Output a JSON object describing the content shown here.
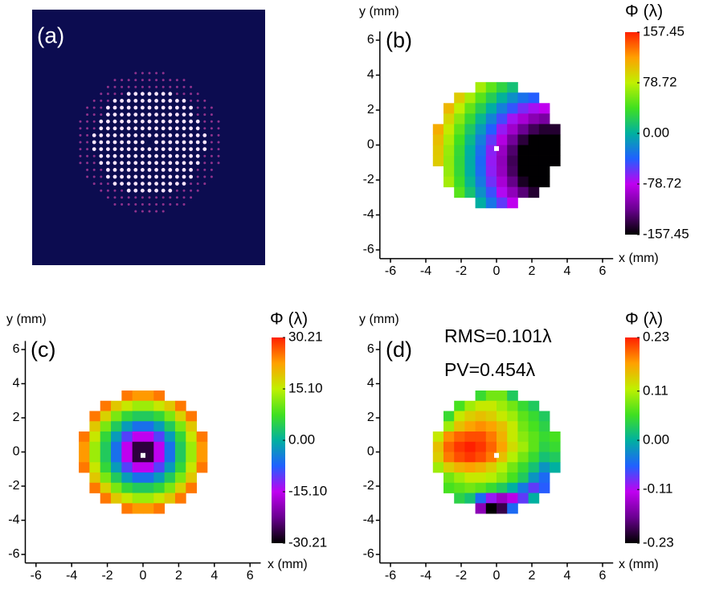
{
  "chart_data": [
    {
      "type": "image",
      "label": "(a)"
    },
    {
      "type": "heatmap",
      "label": "(b)",
      "title": "Φ (λ)",
      "xlabel": "x (mm)",
      "ylabel": "y (mm)",
      "xlim": [
        -6.6,
        6.6
      ],
      "ylim": [
        -6.5,
        6.5
      ],
      "xticks": [
        -6,
        -4,
        -2,
        0,
        2,
        4,
        6
      ],
      "yticks": [
        -6,
        -4,
        -2,
        0,
        2,
        4,
        6
      ],
      "clim": [
        -157.45,
        157.45
      ],
      "cticks": [
        157.45,
        78.72,
        {
          "value": 0,
          "label": "0.00"
        },
        -78.72,
        -157.45
      ],
      "colormap": [
        "#000000",
        "#6a0090",
        "#c000f0",
        "#2060ff",
        "#00b0a0",
        "#40e020",
        "#c0f000",
        "#ffa000",
        "#ff2000"
      ],
      "x": [
        -3.3,
        -2.7,
        -2.1,
        -1.5,
        -0.9,
        -0.3,
        0.3,
        0.9,
        1.5,
        2.1,
        2.7,
        3.3
      ],
      "y": [
        3.3,
        2.7,
        2.1,
        1.5,
        0.9,
        0.3,
        -0.3,
        -0.9,
        -1.5,
        -2.1,
        -2.7,
        -3.3
      ],
      "values": [
        [
          null,
          null,
          null,
          null,
          70,
          48,
          29,
          13,
          null,
          null,
          null,
          null
        ],
        [
          null,
          null,
          97,
          71,
          46,
          23,
          2,
          -16,
          -31,
          -40,
          null,
          null
        ],
        [
          null,
          107,
          78,
          50,
          24,
          -1,
          -24,
          -44,
          -61,
          -72,
          -79,
          null
        ],
        [
          null,
          92,
          62,
          33,
          5,
          -22,
          -48,
          -71,
          -90,
          -104,
          -111,
          null
        ],
        [
          112,
          81,
          49,
          18,
          -11,
          -40,
          -68,
          -94,
          -117,
          -134,
          -144,
          -144
        ],
        [
          104,
          72,
          39,
          7,
          -24,
          -55,
          -85,
          -114,
          -141,
          -157,
          -157,
          -157
        ],
        [
          99,
          66,
          33,
          0,
          -32,
          -65,
          -97,
          -128,
          -157,
          -157,
          -157,
          -157
        ],
        [
          97,
          64,
          31,
          -2,
          -36,
          -68,
          -101,
          -134,
          -157,
          -157,
          -157,
          -157
        ],
        [
          null,
          65,
          32,
          -1,
          -34,
          -66,
          -99,
          -131,
          -157,
          -157,
          -157,
          null
        ],
        [
          null,
          70,
          37,
          5,
          -27,
          -59,
          -90,
          -120,
          -148,
          -157,
          -157,
          null
        ],
        [
          null,
          null,
          46,
          15,
          -16,
          -46,
          -75,
          -101,
          -125,
          -144,
          null,
          null
        ],
        [
          null,
          null,
          null,
          null,
          -1,
          -29,
          -55,
          -79,
          null,
          null,
          null,
          null
        ]
      ]
    },
    {
      "type": "heatmap",
      "label": "(c)",
      "title": "Φ (λ)",
      "xlabel": "x (mm)",
      "ylabel": "y (mm)",
      "xlim": [
        -6.6,
        6.6
      ],
      "ylim": [
        -6.5,
        6.5
      ],
      "xticks": [
        -6,
        -4,
        -2,
        0,
        2,
        4,
        6
      ],
      "yticks": [
        -6,
        -4,
        -2,
        0,
        2,
        4,
        6
      ],
      "clim": [
        -30.21,
        30.21
      ],
      "cticks": [
        30.21,
        {
          "value": 15.1,
          "label": "15.10"
        },
        {
          "value": 0,
          "label": "0.00"
        },
        {
          "value": -15.1,
          "label": "-15.10"
        },
        -30.21
      ],
      "colormap": [
        "#000000",
        "#6a0090",
        "#c000f0",
        "#2060ff",
        "#00b0a0",
        "#40e020",
        "#c0f000",
        "#ffa000",
        "#ff2000"
      ],
      "x": [
        -3.3,
        -2.7,
        -2.1,
        -1.5,
        -0.9,
        -0.3,
        0.3,
        0.9,
        1.5,
        2.1,
        2.7,
        3.3
      ],
      "y": [
        3.3,
        2.7,
        2.1,
        1.5,
        0.9,
        0.3,
        -0.3,
        -0.9,
        -1.5,
        -2.1,
        -2.7,
        -3.3
      ],
      "values": [
        [
          null,
          null,
          null,
          null,
          25,
          23,
          23,
          25,
          null,
          null,
          null,
          null
        ],
        [
          null,
          null,
          25,
          19,
          16,
          13,
          13,
          16,
          19,
          25,
          null,
          null
        ],
        [
          null,
          25,
          18,
          11,
          6,
          4,
          4,
          6,
          11,
          18,
          25,
          null
        ],
        [
          null,
          19,
          11,
          4,
          -2,
          -6,
          -6,
          -2,
          4,
          11,
          19,
          null
        ],
        [
          25,
          16,
          6,
          -2,
          -10,
          -15,
          -15,
          -10,
          -2,
          6,
          16,
          25
        ],
        [
          23,
          13,
          4,
          -6,
          -15,
          -27,
          -27,
          -15,
          -6,
          4,
          13,
          23
        ],
        [
          23,
          13,
          4,
          -6,
          -15,
          -27,
          -27,
          -15,
          -6,
          4,
          13,
          23
        ],
        [
          25,
          16,
          6,
          -2,
          -10,
          -15,
          -15,
          -10,
          -2,
          6,
          16,
          25
        ],
        [
          null,
          19,
          11,
          4,
          -2,
          -6,
          -6,
          -2,
          4,
          11,
          19,
          null
        ],
        [
          null,
          25,
          18,
          11,
          6,
          4,
          4,
          6,
          11,
          18,
          25,
          null
        ],
        [
          null,
          null,
          25,
          19,
          16,
          13,
          13,
          16,
          19,
          25,
          null,
          null
        ],
        [
          null,
          null,
          null,
          null,
          25,
          23,
          23,
          25,
          null,
          null,
          null,
          null
        ]
      ]
    },
    {
      "type": "heatmap",
      "label": "(d)",
      "title": "Φ (λ)",
      "xlabel": "x (mm)",
      "ylabel": "y (mm)",
      "annotations": [
        "RMS=0.101λ",
        "PV=0.454λ"
      ],
      "xlim": [
        -6.6,
        6.6
      ],
      "ylim": [
        -6.5,
        6.5
      ],
      "xticks": [
        -6,
        -4,
        -2,
        0,
        2,
        4,
        6
      ],
      "yticks": [
        -6,
        -4,
        -2,
        0,
        2,
        4,
        6
      ],
      "clim": [
        -0.23,
        0.23
      ],
      "cticks": [
        0.23,
        0.11,
        {
          "value": 0,
          "label": "0.00"
        },
        -0.11,
        -0.23
      ],
      "colormap": [
        "#000000",
        "#6a0090",
        "#c000f0",
        "#2060ff",
        "#00b0a0",
        "#40e020",
        "#c0f000",
        "#ffa000",
        "#ff2000"
      ],
      "x": [
        -3.3,
        -2.7,
        -2.1,
        -1.5,
        -0.9,
        -0.3,
        0.3,
        0.9,
        1.5,
        2.1,
        2.7,
        3.3
      ],
      "y": [
        3.3,
        2.7,
        2.1,
        1.5,
        0.9,
        0.3,
        -0.3,
        -0.9,
        -1.5,
        -2.1,
        -2.7,
        -3.3
      ],
      "values": [
        [
          null,
          null,
          null,
          null,
          0.05,
          0.08,
          0.08,
          0.03,
          null,
          null,
          null,
          null
        ],
        [
          null,
          null,
          0.06,
          0.1,
          0.12,
          0.12,
          0.1,
          0.08,
          0.05,
          0.03,
          null,
          null
        ],
        [
          null,
          0.05,
          0.12,
          0.14,
          0.15,
          0.14,
          0.12,
          0.1,
          0.07,
          0.05,
          0.03,
          null
        ],
        [
          null,
          0.1,
          0.15,
          0.17,
          0.18,
          0.17,
          0.15,
          0.12,
          0.08,
          0.06,
          0.04,
          null
        ],
        [
          0.12,
          0.18,
          0.2,
          0.21,
          0.21,
          0.19,
          0.16,
          0.12,
          0.09,
          0.07,
          0.05,
          0.06
        ],
        [
          0.15,
          0.2,
          0.22,
          0.23,
          0.22,
          0.2,
          0.17,
          0.13,
          0.1,
          0.07,
          0.04,
          0.05
        ],
        [
          0.14,
          0.19,
          0.21,
          0.22,
          0.21,
          0.19,
          0.15,
          0.11,
          0.08,
          0.05,
          0.02,
          0.03
        ],
        [
          0.1,
          0.14,
          0.16,
          0.17,
          0.16,
          0.14,
          0.11,
          0.08,
          0.05,
          0.02,
          -0.02,
          0
        ],
        [
          null,
          0.08,
          0.1,
          0.12,
          0.12,
          0.11,
          0.09,
          0.06,
          0.03,
          -0.02,
          -0.05,
          null
        ],
        [
          null,
          0.06,
          0.07,
          0.08,
          0.07,
          0.05,
          0.03,
          0,
          -0.04,
          -0.08,
          -0.06,
          null
        ],
        [
          null,
          null,
          0.04,
          0.02,
          -0.05,
          -0.1,
          -0.14,
          -0.12,
          -0.08,
          0,
          null,
          null
        ],
        [
          null,
          null,
          null,
          null,
          -0.15,
          -0.23,
          -0.2,
          -0.05,
          null,
          null,
          null,
          null
        ]
      ]
    }
  ]
}
